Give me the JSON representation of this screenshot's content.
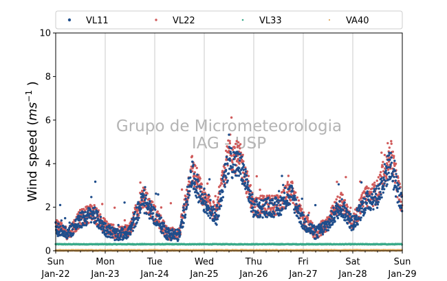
{
  "chart_data": {
    "type": "scatter",
    "title": "",
    "xlabel": "",
    "ylabel_main": "Wind speed (",
    "ylabel_ms": "ms",
    "ylabel_exp": "−1",
    "ylabel_end": " )",
    "ylim": [
      0,
      10
    ],
    "yticks": [
      "0",
      "2",
      "4",
      "6",
      "8",
      "10"
    ],
    "xlim": [
      "2023-01-22",
      "2023-01-29"
    ],
    "xticks": [
      {
        "day": "Sun",
        "date": "Jan-22"
      },
      {
        "day": "Mon",
        "date": "Jan-23"
      },
      {
        "day": "Tue",
        "date": "Jan-24"
      },
      {
        "day": "Wed",
        "date": "Jan-25"
      },
      {
        "day": "Thu",
        "date": "Jan-26"
      },
      {
        "day": "Fri",
        "date": "Jan-27"
      },
      {
        "day": "Sat",
        "date": "Jan-28"
      },
      {
        "day": "Sun",
        "date": "Jan-29"
      }
    ],
    "grid": "vertical",
    "legend_position": "top",
    "watermark": [
      "Grupo de Micrometeorologia",
      "IAG - USP"
    ],
    "series": [
      {
        "name": "VL11",
        "color": "#1f4e8c",
        "profile": [
          [
            "2023-01-22",
            1.0
          ],
          [
            "2023-01-22 06:00",
            0.8
          ],
          [
            "2023-01-22 12:00",
            1.4
          ],
          [
            "2023-01-22 18:00",
            1.7
          ],
          [
            "2023-01-23",
            1.0
          ],
          [
            "2023-01-23 06:00",
            0.7
          ],
          [
            "2023-01-23 12:00",
            0.9
          ],
          [
            "2023-01-23 18:00",
            2.3
          ],
          [
            "2023-01-24",
            1.6
          ],
          [
            "2023-01-24 06:00",
            0.8
          ],
          [
            "2023-01-24 12:00",
            0.7
          ],
          [
            "2023-01-24 18:00",
            3.5
          ],
          [
            "2023-01-25",
            2.2
          ],
          [
            "2023-01-25 06:00",
            1.6
          ],
          [
            "2023-01-25 12:00",
            4.2
          ],
          [
            "2023-01-25 18:00",
            3.8
          ],
          [
            "2023-01-26",
            1.9
          ],
          [
            "2023-01-26 06:00",
            2.0
          ],
          [
            "2023-01-26 12:00",
            2.0
          ],
          [
            "2023-01-26 18:00",
            2.6
          ],
          [
            "2023-01-27",
            1.3
          ],
          [
            "2023-01-27 06:00",
            0.8
          ],
          [
            "2023-01-27 12:00",
            1.2
          ],
          [
            "2023-01-27 18:00",
            2.1
          ],
          [
            "2023-01-28",
            1.2
          ],
          [
            "2023-01-28 06:00",
            2.2
          ],
          [
            "2023-01-28 12:00",
            2.5
          ],
          [
            "2023-01-28 18:00",
            4.0
          ],
          [
            "2023-01-29",
            2.0
          ]
        ]
      },
      {
        "name": "VL22",
        "color": "#d05a5a",
        "profile": [
          [
            "2023-01-22",
            1.1
          ],
          [
            "2023-01-22 06:00",
            0.8
          ],
          [
            "2023-01-22 12:00",
            1.5
          ],
          [
            "2023-01-22 18:00",
            1.8
          ],
          [
            "2023-01-23",
            1.1
          ],
          [
            "2023-01-23 06:00",
            0.8
          ],
          [
            "2023-01-23 12:00",
            1.0
          ],
          [
            "2023-01-23 18:00",
            2.5
          ],
          [
            "2023-01-24",
            1.7
          ],
          [
            "2023-01-24 06:00",
            0.8
          ],
          [
            "2023-01-24 12:00",
            0.8
          ],
          [
            "2023-01-24 18:00",
            3.8
          ],
          [
            "2023-01-25",
            2.3
          ],
          [
            "2023-01-25 06:00",
            1.7
          ],
          [
            "2023-01-25 12:00",
            4.6
          ],
          [
            "2023-01-25 18:00",
            4.1
          ],
          [
            "2023-01-26",
            2.0
          ],
          [
            "2023-01-26 06:00",
            2.1
          ],
          [
            "2023-01-26 12:00",
            2.1
          ],
          [
            "2023-01-26 18:00",
            2.8
          ],
          [
            "2023-01-27",
            1.4
          ],
          [
            "2023-01-27 06:00",
            0.8
          ],
          [
            "2023-01-27 12:00",
            1.3
          ],
          [
            "2023-01-27 18:00",
            2.3
          ],
          [
            "2023-01-28",
            1.3
          ],
          [
            "2023-01-28 06:00",
            2.4
          ],
          [
            "2023-01-28 12:00",
            2.7
          ],
          [
            "2023-01-28 18:00",
            4.5
          ],
          [
            "2023-01-29",
            2.1
          ]
        ]
      },
      {
        "name": "VL33",
        "color": "#3aaa8a",
        "profile": [
          [
            "2023-01-22",
            0.3
          ],
          [
            "2023-01-29",
            0.3
          ]
        ]
      },
      {
        "name": "VA40",
        "color": "#e0a85a",
        "profile": [
          [
            "2023-01-22",
            0.02
          ],
          [
            "2023-01-29",
            0.02
          ]
        ]
      }
    ]
  }
}
